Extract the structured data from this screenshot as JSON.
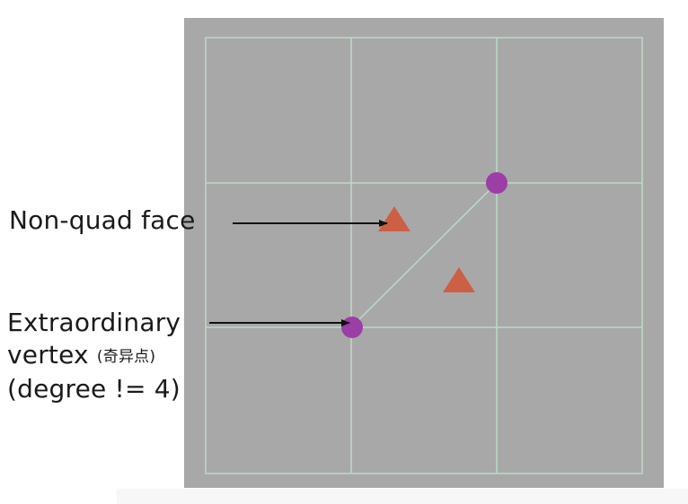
{
  "labels": {
    "non_quad_face": "Non-quad face",
    "extraordinary_line1": "Extraordinary",
    "extraordinary_line2": "vertex",
    "extraordinary_chinese": "(奇异点)",
    "extraordinary_line3": "(degree != 4)"
  },
  "colors": {
    "canvas_bg": "#a9a8a8",
    "grid_line": "#b9dcc6",
    "vertex_dot": "#9b3ea6",
    "face_triangle": "#cc5f44",
    "arrow": "#111111",
    "text": "#1a1a1a"
  },
  "mesh": {
    "grid_cells": "3x3",
    "extraordinary_vertices": 2,
    "non_quad_faces": 2
  }
}
